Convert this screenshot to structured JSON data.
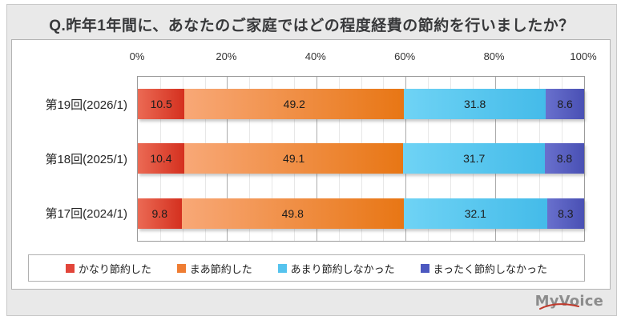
{
  "title": "Q.昨年1年間に、あなたのご家庭ではどの程度経費の節約を行いましたか？",
  "logo": {
    "text": "MyVoice",
    "accent_color": "#c0392b",
    "text_color": "#8c8c8c"
  },
  "chart_data": {
    "type": "bar",
    "subtype": "horizontal-stacked",
    "stacked": true,
    "title": "Q.昨年1年間に、あなたのご家庭ではどの程度経費の節約を行いましたか？",
    "categories": [
      "第19回(2026/1)",
      "第18回(2025/1)",
      "第17回(2024/1)"
    ],
    "series": [
      {
        "name": "かなり節約した",
        "color": "#e2453a",
        "gradient": [
          "#eb6a54",
          "#d4301f"
        ],
        "values": [
          10.5,
          10.4,
          9.8
        ]
      },
      {
        "name": "まあ節約した",
        "color": "#ef7d33",
        "gradient": [
          "#f8a877",
          "#e87614"
        ],
        "values": [
          49.2,
          49.1,
          49.8
        ]
      },
      {
        "name": "あまり節約しなかった",
        "color": "#55c3ee",
        "gradient": [
          "#6fd3f5",
          "#44bbe9"
        ],
        "values": [
          31.8,
          31.7,
          32.1
        ]
      },
      {
        "name": "まったく節約しなかった",
        "color": "#4c58c0",
        "gradient": [
          "#6970cd",
          "#4950b4"
        ],
        "values": [
          8.6,
          8.8,
          8.3
        ]
      }
    ],
    "x_axis": {
      "min": 0,
      "max": 100,
      "major_step": 20,
      "minor_step": 5,
      "tick_labels": [
        "0%",
        "20%",
        "40%",
        "60%",
        "80%",
        "100%"
      ]
    },
    "value_decimals": 1,
    "grid": {
      "minor_color": "#e7e7e7",
      "major_color": "#ababab"
    },
    "legend_position": "bottom"
  }
}
